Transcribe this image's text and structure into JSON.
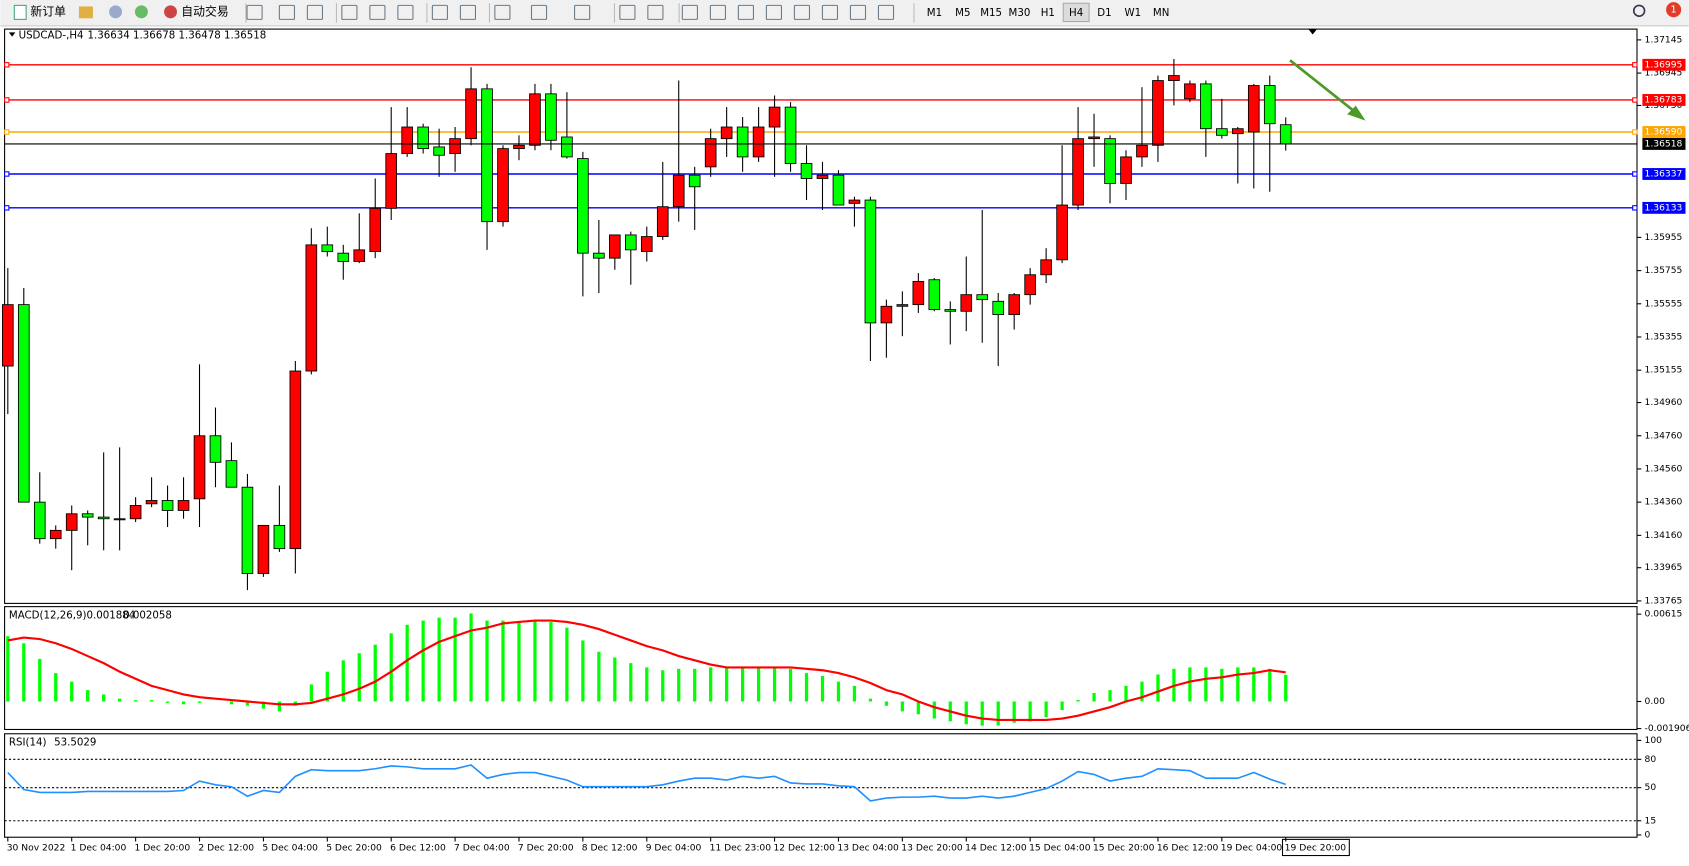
{
  "toolbar": {
    "new_order": "新订单",
    "auto_trade": "自动交易",
    "timeframes": [
      "M1",
      "M5",
      "M15",
      "M30",
      "H1",
      "H4",
      "D1",
      "W1",
      "MN"
    ],
    "active_timeframe": 5,
    "notifications": 1
  },
  "chart_data": [
    {
      "type": "candlestick",
      "title": "USDCAD-,H4",
      "up_color": "#ff0000",
      "down_color": "#00ff00",
      "categories": [
        "30 Nov 2022",
        null,
        null,
        null,
        "1 Dec 04:00",
        null,
        null,
        null,
        "1 Dec 20:00",
        null,
        null,
        null,
        "2 Dec 12:00",
        null,
        null,
        null,
        "5 Dec 04:00",
        null,
        null,
        null,
        "5 Dec 20:00",
        null,
        null,
        null,
        "6 Dec 12:00",
        null,
        null,
        null,
        "7 Dec 04:00",
        null,
        null,
        null,
        "7 Dec 20:00",
        null,
        null,
        null,
        "8 Dec 12:00",
        null,
        null,
        null,
        "9 Dec 04:00",
        null,
        null,
        null,
        "11 Dec 23:00",
        null,
        null,
        null,
        "12 Dec 12:00",
        null,
        null,
        null,
        "13 Dec 04:00",
        null,
        null,
        null,
        "13 Dec 20:00",
        null,
        null,
        null,
        "14 Dec 12:00",
        null,
        null,
        null,
        "15 Dec 04:00",
        null,
        null,
        null,
        "15 Dec 20:00",
        null,
        null,
        null,
        "16 Dec 12:00",
        null,
        null,
        null,
        "19 Dec 04:00",
        null,
        null,
        null,
        "19 Dec 20:00"
      ],
      "open": [
        1.3518,
        1.3555,
        1.3436,
        1.3414,
        1.3419,
        1.3429,
        1.3427,
        1.3426,
        1.3426,
        1.3435,
        1.3437,
        1.3431,
        1.3438,
        1.3476,
        1.3461,
        1.3445,
        1.3393,
        1.3422,
        1.3408,
        1.3515,
        1.3591,
        1.3586,
        1.3581,
        1.3587,
        1.3613,
        1.3646,
        1.3662,
        1.365,
        1.3646,
        1.3655,
        1.3685,
        1.3605,
        1.3649,
        1.3651,
        1.3682,
        1.3656,
        1.3643,
        1.3586,
        1.3583,
        1.3597,
        1.3587,
        1.3596,
        1.3614,
        1.3633,
        1.3638,
        1.3655,
        1.3662,
        1.3644,
        1.3662,
        1.3674,
        1.364,
        1.3631,
        1.3633,
        1.3616,
        1.3618,
        1.3544,
        1.3554,
        1.3555,
        1.357,
        1.3552,
        1.3551,
        1.3561,
        1.3557,
        1.3549,
        1.3561,
        1.3573,
        1.3582,
        1.3615,
        1.3655,
        1.3655,
        1.3628,
        1.3644,
        1.3651,
        1.369,
        1.3679,
        1.3688,
        1.3661,
        1.3658,
        1.3659,
        1.3687,
        1.36634
      ],
      "high": [
        1.3577,
        1.3565,
        1.3454,
        1.3422,
        1.3434,
        1.3431,
        1.3466,
        1.3469,
        1.3439,
        1.3451,
        1.3446,
        1.3451,
        1.3519,
        1.3493,
        1.3472,
        1.3453,
        1.3422,
        1.3446,
        1.3521,
        1.3601,
        1.3602,
        1.3591,
        1.361,
        1.3631,
        1.3674,
        1.3674,
        1.3664,
        1.3661,
        1.3662,
        1.3698,
        1.3688,
        1.3651,
        1.3657,
        1.3688,
        1.3688,
        1.3683,
        1.3647,
        1.3606,
        1.3597,
        1.3599,
        1.3602,
        1.3641,
        1.369,
        1.3638,
        1.3661,
        1.3674,
        1.3668,
        1.3674,
        1.3681,
        1.3677,
        1.3651,
        1.3641,
        1.3636,
        1.362,
        1.362,
        1.3558,
        1.3563,
        1.3574,
        1.3571,
        1.3557,
        1.3584,
        1.3612,
        1.3562,
        1.3562,
        1.3577,
        1.3589,
        1.3651,
        1.3674,
        1.367,
        1.3657,
        1.3648,
        1.3686,
        1.3693,
        1.3703,
        1.369,
        1.369,
        1.3679,
        1.3662,
        1.3688,
        1.3693,
        1.36678
      ],
      "low": [
        1.3489,
        1.3436,
        1.3411,
        1.3408,
        1.3395,
        1.341,
        1.3407,
        1.3407,
        1.3424,
        1.3433,
        1.3421,
        1.3426,
        1.3421,
        1.3445,
        1.3445,
        1.3383,
        1.3391,
        1.3406,
        1.3393,
        1.3513,
        1.3584,
        1.357,
        1.358,
        1.3583,
        1.3606,
        1.3644,
        1.3646,
        1.3632,
        1.3635,
        1.3651,
        1.3588,
        1.3602,
        1.3642,
        1.3648,
        1.3648,
        1.3643,
        1.356,
        1.3562,
        1.3576,
        1.3567,
        1.3581,
        1.3594,
        1.3605,
        1.36,
        1.3632,
        1.3644,
        1.3635,
        1.3641,
        1.3632,
        1.3635,
        1.3618,
        1.3612,
        1.3615,
        1.3602,
        1.3521,
        1.3523,
        1.3536,
        1.355,
        1.3551,
        1.3531,
        1.3539,
        1.3532,
        1.3518,
        1.354,
        1.3555,
        1.3568,
        1.358,
        1.3612,
        1.3638,
        1.3616,
        1.3618,
        1.3638,
        1.3641,
        1.3675,
        1.3677,
        1.3644,
        1.3655,
        1.3628,
        1.3625,
        1.3623,
        1.36478
      ],
      "close": [
        1.3555,
        1.3436,
        1.3414,
        1.3419,
        1.3429,
        1.3427,
        1.3426,
        1.3426,
        1.3434,
        1.3437,
        1.3431,
        1.3437,
        1.3476,
        1.346,
        1.3445,
        1.3393,
        1.3422,
        1.3408,
        1.3515,
        1.3591,
        1.3587,
        1.3581,
        1.3588,
        1.3613,
        1.3646,
        1.3662,
        1.3649,
        1.3645,
        1.3655,
        1.3685,
        1.3605,
        1.3649,
        1.3651,
        1.3682,
        1.3654,
        1.3644,
        1.3586,
        1.3583,
        1.3597,
        1.3588,
        1.3596,
        1.3614,
        1.3633,
        1.3626,
        1.3655,
        1.3662,
        1.3644,
        1.3662,
        1.3674,
        1.364,
        1.3631,
        1.3633,
        1.3615,
        1.3618,
        1.3544,
        1.3554,
        1.3555,
        1.3569,
        1.3552,
        1.3551,
        1.3561,
        1.3558,
        1.3549,
        1.3561,
        1.3573,
        1.3582,
        1.3615,
        1.3655,
        1.3656,
        1.3628,
        1.3644,
        1.3651,
        1.369,
        1.3693,
        1.3688,
        1.3661,
        1.3657,
        1.3661,
        1.3687,
        1.3664,
        1.36518
      ],
      "ylim": [
        1.3375,
        1.3721
      ],
      "yticks": [
        1.37145,
        1.36945,
        {
          "value": 1.3675,
          "label": "1.36750"
        },
        1.35955,
        1.35755,
        1.35555,
        1.35355,
        1.35155,
        {
          "value": 1.3496,
          "label": "1.34960"
        },
        {
          "value": 1.3476,
          "label": "1.34760"
        },
        {
          "value": 1.3456,
          "label": "1.34560"
        },
        {
          "value": 1.3436,
          "label": "1.34360"
        },
        {
          "value": 1.3416,
          "label": "1.34160"
        },
        1.33965,
        1.33765
      ],
      "levels": [
        {
          "value": 1.36995,
          "color": "#ff0000"
        },
        {
          "value": 1.36783,
          "color": "#ff0000"
        },
        {
          "value": 1.3659,
          "label": "1.36590",
          "color": "#ffa500"
        },
        {
          "value": 1.36337,
          "color": "#0000ff"
        },
        {
          "value": 1.36133,
          "color": "#0000ff"
        }
      ],
      "last_color": "#000000"
    },
    {
      "type": "macd",
      "title": "MACD(12,26,9)",
      "histogram_color": "#00ff00",
      "signal_color": "#ff0000",
      "histogram": [
        0.0046,
        0.0041,
        0.003,
        0.002,
        0.0014,
        0.0008,
        0.0005,
        0.0002,
        0.0001,
        0.0001,
        -0.0001,
        -0.0002,
        -0.0001,
        0,
        -0.0002,
        -0.0003,
        -0.0005,
        -0.0007,
        -0.0003,
        0.0012,
        0.0021,
        0.0029,
        0.0034,
        0.004,
        0.0048,
        0.0054,
        0.0057,
        0.0059,
        0.0059,
        0.0062,
        0.0057,
        0.0057,
        0.0056,
        0.0057,
        0.0056,
        0.0052,
        0.0043,
        0.0035,
        0.0031,
        0.0027,
        0.0024,
        0.0022,
        0.0023,
        0.0023,
        0.0024,
        0.0024,
        0.0024,
        0.0024,
        0.0024,
        0.0023,
        0.002,
        0.0018,
        0.0014,
        0.0011,
        0.0002,
        -0.0003,
        -0.0007,
        -0.0009,
        -0.0012,
        -0.0014,
        -0.0016,
        -0.0017,
        -0.0017,
        -0.0015,
        -0.0014,
        -0.0011,
        -0.0006,
        0.0001,
        0.0006,
        0.0008,
        0.0011,
        0.0014,
        0.0019,
        0.0023,
        0.0024,
        0.0024,
        0.0023,
        0.0024,
        0.0024,
        0.0023,
        0.001884
      ],
      "signal": [
        0.0043,
        0.0045,
        0.0044,
        0.0041,
        0.0037,
        0.0032,
        0.0027,
        0.0021,
        0.0016,
        0.0011,
        0.0008,
        0.0005,
        0.0003,
        0.0002,
        0.0001,
        0,
        -0.0001,
        -0.0002,
        -0.0002,
        -0.0001,
        0.0002,
        0.0005,
        0.0009,
        0.0014,
        0.0021,
        0.0029,
        0.0036,
        0.0042,
        0.0046,
        0.005,
        0.0052,
        0.0055,
        0.0056,
        0.0057,
        0.0057,
        0.0056,
        0.0054,
        0.0051,
        0.0047,
        0.0043,
        0.0039,
        0.0036,
        0.0032,
        0.0029,
        0.0026,
        0.0024,
        0.0024,
        0.0024,
        0.0024,
        0.0024,
        0.0023,
        0.0022,
        0.002,
        0.0017,
        0.0013,
        0.0008,
        0.0005,
        0,
        -0.0004,
        -0.0007,
        -0.001,
        -0.0012,
        -0.0013,
        -0.0013,
        -0.0013,
        -0.0013,
        -0.0012,
        -0.001,
        -0.0007,
        -0.0004,
        0,
        0.0003,
        0.0007,
        0.0011,
        0.0014,
        0.0016,
        0.0017,
        0.0019,
        0.002,
        0.0022,
        0.002058
      ],
      "ylim": [
        -0.00197,
        0.00668
      ],
      "yticks": [
        0.00615,
        {
          "value": 0,
          "label": "0.00"
        },
        -0.001906
      ]
    },
    {
      "type": "line",
      "title": "RSI(14)",
      "color": "#1e90ff",
      "values": [
        66,
        48,
        45,
        45,
        45,
        46,
        46,
        46,
        46,
        46,
        46,
        47,
        57,
        53,
        51,
        41,
        47,
        45,
        62,
        69,
        68,
        68,
        68,
        70,
        73,
        72,
        70,
        70,
        70,
        74,
        60,
        64,
        66,
        66,
        62,
        58,
        51,
        51,
        51,
        51,
        51,
        53,
        57,
        60,
        60,
        58,
        62,
        60,
        62,
        55,
        54,
        54,
        52,
        51,
        36,
        39,
        40,
        40,
        41,
        39,
        39,
        41,
        39,
        41,
        45,
        49,
        57,
        67,
        64,
        57,
        60,
        62,
        70,
        69,
        68,
        60,
        60,
        60,
        66,
        59,
        53.5029
      ],
      "ylim": [
        -2.4,
        107
      ],
      "yticks": [
        100,
        80,
        50,
        15,
        0
      ]
    }
  ]
}
